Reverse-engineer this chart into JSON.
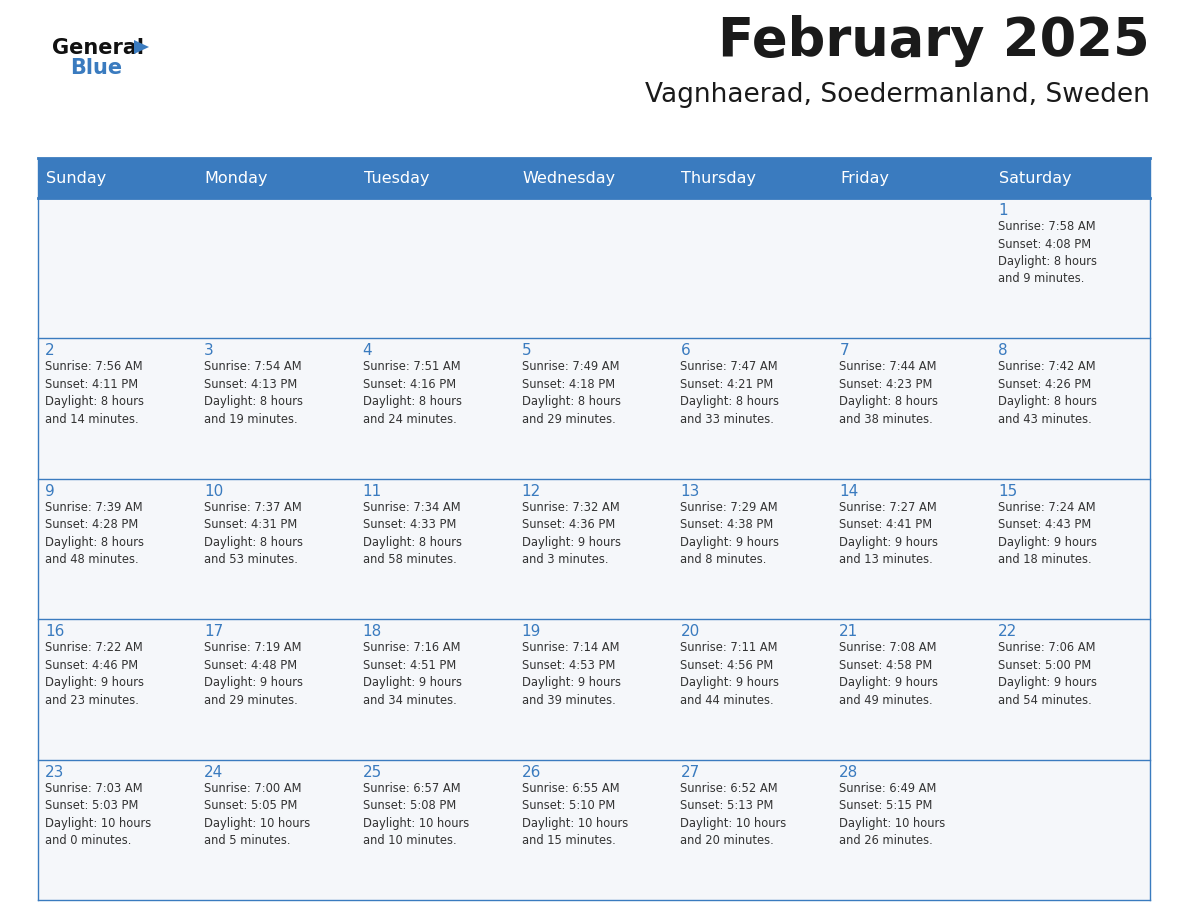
{
  "title": "February 2025",
  "subtitle": "Vagnhaerad, Soedermanland, Sweden",
  "header_color": "#3a7bbf",
  "header_text_color": "#ffffff",
  "cell_bg_odd": "#f0f4f8",
  "cell_bg_even": "#ffffff",
  "day_number_color": "#3a7bbf",
  "info_text_color": "#333333",
  "border_color": "#3a7bbf",
  "days_of_week": [
    "Sunday",
    "Monday",
    "Tuesday",
    "Wednesday",
    "Thursday",
    "Friday",
    "Saturday"
  ],
  "weeks": [
    [
      {
        "day": null,
        "info": null
      },
      {
        "day": null,
        "info": null
      },
      {
        "day": null,
        "info": null
      },
      {
        "day": null,
        "info": null
      },
      {
        "day": null,
        "info": null
      },
      {
        "day": null,
        "info": null
      },
      {
        "day": 1,
        "info": "Sunrise: 7:58 AM\nSunset: 4:08 PM\nDaylight: 8 hours\nand 9 minutes."
      }
    ],
    [
      {
        "day": 2,
        "info": "Sunrise: 7:56 AM\nSunset: 4:11 PM\nDaylight: 8 hours\nand 14 minutes."
      },
      {
        "day": 3,
        "info": "Sunrise: 7:54 AM\nSunset: 4:13 PM\nDaylight: 8 hours\nand 19 minutes."
      },
      {
        "day": 4,
        "info": "Sunrise: 7:51 AM\nSunset: 4:16 PM\nDaylight: 8 hours\nand 24 minutes."
      },
      {
        "day": 5,
        "info": "Sunrise: 7:49 AM\nSunset: 4:18 PM\nDaylight: 8 hours\nand 29 minutes."
      },
      {
        "day": 6,
        "info": "Sunrise: 7:47 AM\nSunset: 4:21 PM\nDaylight: 8 hours\nand 33 minutes."
      },
      {
        "day": 7,
        "info": "Sunrise: 7:44 AM\nSunset: 4:23 PM\nDaylight: 8 hours\nand 38 minutes."
      },
      {
        "day": 8,
        "info": "Sunrise: 7:42 AM\nSunset: 4:26 PM\nDaylight: 8 hours\nand 43 minutes."
      }
    ],
    [
      {
        "day": 9,
        "info": "Sunrise: 7:39 AM\nSunset: 4:28 PM\nDaylight: 8 hours\nand 48 minutes."
      },
      {
        "day": 10,
        "info": "Sunrise: 7:37 AM\nSunset: 4:31 PM\nDaylight: 8 hours\nand 53 minutes."
      },
      {
        "day": 11,
        "info": "Sunrise: 7:34 AM\nSunset: 4:33 PM\nDaylight: 8 hours\nand 58 minutes."
      },
      {
        "day": 12,
        "info": "Sunrise: 7:32 AM\nSunset: 4:36 PM\nDaylight: 9 hours\nand 3 minutes."
      },
      {
        "day": 13,
        "info": "Sunrise: 7:29 AM\nSunset: 4:38 PM\nDaylight: 9 hours\nand 8 minutes."
      },
      {
        "day": 14,
        "info": "Sunrise: 7:27 AM\nSunset: 4:41 PM\nDaylight: 9 hours\nand 13 minutes."
      },
      {
        "day": 15,
        "info": "Sunrise: 7:24 AM\nSunset: 4:43 PM\nDaylight: 9 hours\nand 18 minutes."
      }
    ],
    [
      {
        "day": 16,
        "info": "Sunrise: 7:22 AM\nSunset: 4:46 PM\nDaylight: 9 hours\nand 23 minutes."
      },
      {
        "day": 17,
        "info": "Sunrise: 7:19 AM\nSunset: 4:48 PM\nDaylight: 9 hours\nand 29 minutes."
      },
      {
        "day": 18,
        "info": "Sunrise: 7:16 AM\nSunset: 4:51 PM\nDaylight: 9 hours\nand 34 minutes."
      },
      {
        "day": 19,
        "info": "Sunrise: 7:14 AM\nSunset: 4:53 PM\nDaylight: 9 hours\nand 39 minutes."
      },
      {
        "day": 20,
        "info": "Sunrise: 7:11 AM\nSunset: 4:56 PM\nDaylight: 9 hours\nand 44 minutes."
      },
      {
        "day": 21,
        "info": "Sunrise: 7:08 AM\nSunset: 4:58 PM\nDaylight: 9 hours\nand 49 minutes."
      },
      {
        "day": 22,
        "info": "Sunrise: 7:06 AM\nSunset: 5:00 PM\nDaylight: 9 hours\nand 54 minutes."
      }
    ],
    [
      {
        "day": 23,
        "info": "Sunrise: 7:03 AM\nSunset: 5:03 PM\nDaylight: 10 hours\nand 0 minutes."
      },
      {
        "day": 24,
        "info": "Sunrise: 7:00 AM\nSunset: 5:05 PM\nDaylight: 10 hours\nand 5 minutes."
      },
      {
        "day": 25,
        "info": "Sunrise: 6:57 AM\nSunset: 5:08 PM\nDaylight: 10 hours\nand 10 minutes."
      },
      {
        "day": 26,
        "info": "Sunrise: 6:55 AM\nSunset: 5:10 PM\nDaylight: 10 hours\nand 15 minutes."
      },
      {
        "day": 27,
        "info": "Sunrise: 6:52 AM\nSunset: 5:13 PM\nDaylight: 10 hours\nand 20 minutes."
      },
      {
        "day": 28,
        "info": "Sunrise: 6:49 AM\nSunset: 5:15 PM\nDaylight: 10 hours\nand 26 minutes."
      },
      {
        "day": null,
        "info": null
      }
    ]
  ],
  "logo_general_color": "#111111",
  "logo_blue_color": "#3a7bbf",
  "logo_triangle_color": "#3a7bbf"
}
